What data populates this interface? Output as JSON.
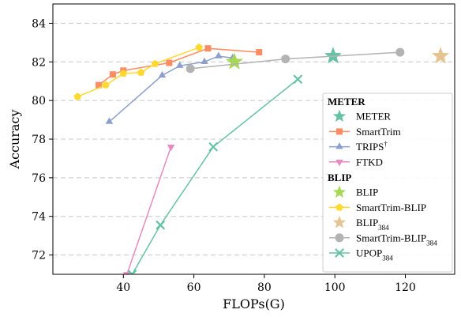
{
  "chart_data": {
    "type": "line",
    "title": "",
    "xlabel": "FLOPs(G)",
    "ylabel": "Accuracy",
    "xlim": [
      20,
      134
    ],
    "ylim": [
      71,
      85
    ],
    "xticks": [
      40,
      60,
      80,
      100,
      120
    ],
    "yticks": [
      72,
      74,
      76,
      78,
      80,
      82,
      84
    ],
    "grid": "horizontal dashed",
    "legend_position": "bottom-right",
    "legend_groups": [
      "METER",
      "BLIP"
    ],
    "series": [
      {
        "name": "METER",
        "label_html": "METER",
        "group": "METER",
        "color": "#66c2a5",
        "marker": "star",
        "line": false,
        "x": [
          99.5
        ],
        "y": [
          82.3
        ]
      },
      {
        "name": "SmartTrim",
        "label_html": "SmartTrim",
        "group": "METER",
        "color": "#fc8d62",
        "marker": "square",
        "line": true,
        "x": [
          33.0,
          37.0,
          40.0,
          53.0,
          64.0,
          78.5
        ],
        "y": [
          80.8,
          81.35,
          81.55,
          81.95,
          82.7,
          82.5
        ]
      },
      {
        "name": "TRIPS†",
        "label_html": "TRIPS<tspan class='legend-sup' baseline-shift='super'>†</tspan>",
        "group": "METER",
        "color": "#8da0cb",
        "marker": "triangle-up",
        "line": true,
        "x": [
          36.0,
          51.0,
          56.0,
          63.0,
          67.0,
          71.0
        ],
        "y": [
          78.9,
          81.3,
          81.8,
          82.0,
          82.3,
          82.2
        ]
      },
      {
        "name": "FTKD",
        "label_html": "FTKD",
        "group": "METER",
        "color": "#e78ac3",
        "marker": "triangle-down",
        "line": true,
        "x": [
          41.0,
          53.5
        ],
        "y": [
          71.0,
          77.6
        ]
      },
      {
        "name": "BLIP",
        "label_html": "BLIP",
        "group": "BLIP",
        "color": "#a6d854",
        "marker": "star",
        "line": false,
        "x": [
          71.5
        ],
        "y": [
          82.0
        ]
      },
      {
        "name": "SmartTrim-BLIP",
        "label_html": "SmartTrim-BLIP",
        "group": "BLIP",
        "color": "#ffd92f",
        "marker": "pentagon",
        "line": true,
        "x": [
          27.0,
          35.0,
          40.0,
          45.0,
          49.0,
          61.5
        ],
        "y": [
          80.2,
          80.8,
          81.4,
          81.45,
          81.9,
          82.75
        ]
      },
      {
        "name": "BLIP384",
        "label_html": "BLIP<tspan class='legend-sub' baseline-shift='sub'>384</tspan>",
        "group": "BLIP",
        "color": "#e5c494",
        "marker": "star",
        "line": false,
        "x": [
          130.0
        ],
        "y": [
          82.3
        ]
      },
      {
        "name": "SmartTrim-BLIP384",
        "label_html": "SmartTrim-BLIP<tspan class='legend-sub' baseline-shift='sub'>384</tspan>",
        "group": "BLIP",
        "color": "#b3b3b3",
        "marker": "circle",
        "line": true,
        "x": [
          59.0,
          86.0,
          118.5
        ],
        "y": [
          81.65,
          82.15,
          82.5
        ]
      },
      {
        "name": "UPOP384",
        "label_html": "UPOP<tspan class='legend-sub' baseline-shift='sub'>384</tspan>",
        "group": "BLIP",
        "color": "#66c2a5",
        "marker": "x",
        "line": true,
        "x": [
          42.5,
          50.5,
          65.5,
          89.5
        ],
        "y": [
          71.0,
          73.55,
          77.6,
          81.1
        ]
      }
    ]
  }
}
